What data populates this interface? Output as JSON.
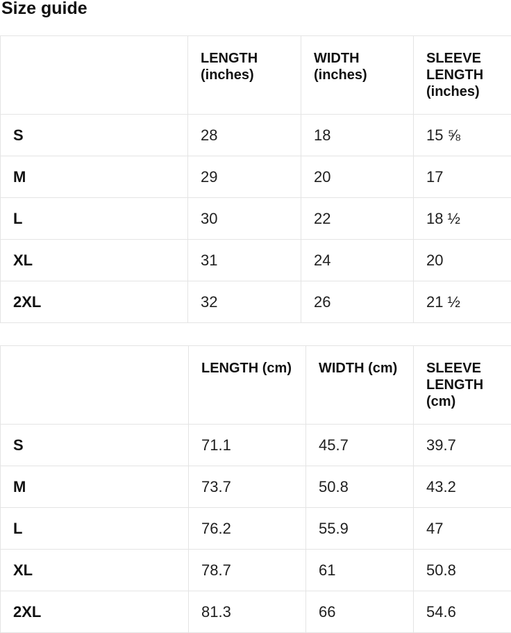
{
  "page": {
    "title": "Size guide"
  },
  "colors": {
    "background": "#ffffff",
    "border": "#e4e4e4",
    "heading_text": "#111111",
    "body_text": "#1f1f1f"
  },
  "tables": [
    {
      "unit": "inches",
      "columns": [
        "LENGTH (inches)",
        "WIDTH (inches)",
        "SLEEVE LENGTH (inches)"
      ],
      "rows": [
        {
          "size": "S",
          "length": "28",
          "width": "18",
          "sleeve": "15 ⅝"
        },
        {
          "size": "M",
          "length": "29",
          "width": "20",
          "sleeve": "17"
        },
        {
          "size": "L",
          "length": "30",
          "width": "22",
          "sleeve": "18 ½"
        },
        {
          "size": "XL",
          "length": "31",
          "width": "24",
          "sleeve": "20"
        },
        {
          "size": "2XL",
          "length": "32",
          "width": "26",
          "sleeve": "21 ½"
        }
      ]
    },
    {
      "unit": "cm",
      "columns": [
        "LENGTH (cm)",
        "WIDTH (cm)",
        "SLEEVE LENGTH (cm)"
      ],
      "rows": [
        {
          "size": "S",
          "length": "71.1",
          "width": "45.7",
          "sleeve": "39.7"
        },
        {
          "size": "M",
          "length": "73.7",
          "width": "50.8",
          "sleeve": "43.2"
        },
        {
          "size": "L",
          "length": "76.2",
          "width": "55.9",
          "sleeve": "47"
        },
        {
          "size": "XL",
          "length": "78.7",
          "width": "61",
          "sleeve": "50.8"
        },
        {
          "size": "2XL",
          "length": "81.3",
          "width": "66",
          "sleeve": "54.6"
        }
      ]
    }
  ]
}
